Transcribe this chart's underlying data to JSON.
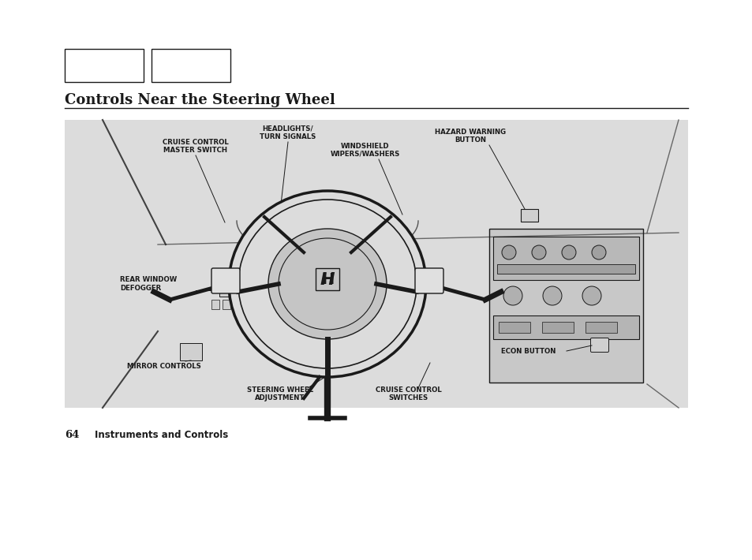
{
  "page_bg": "#ffffff",
  "diagram_bg": "#dcdcdc",
  "title": "Controls Near the Steering Wheel",
  "title_fontsize": 13,
  "footer_number": "64",
  "footer_text": "Instruments and Controls",
  "footer_fontsize": 8.5,
  "page_width": 9.54,
  "page_height": 7.1,
  "line_color": "#1a1a1a",
  "label_color": "#1a1a1a"
}
